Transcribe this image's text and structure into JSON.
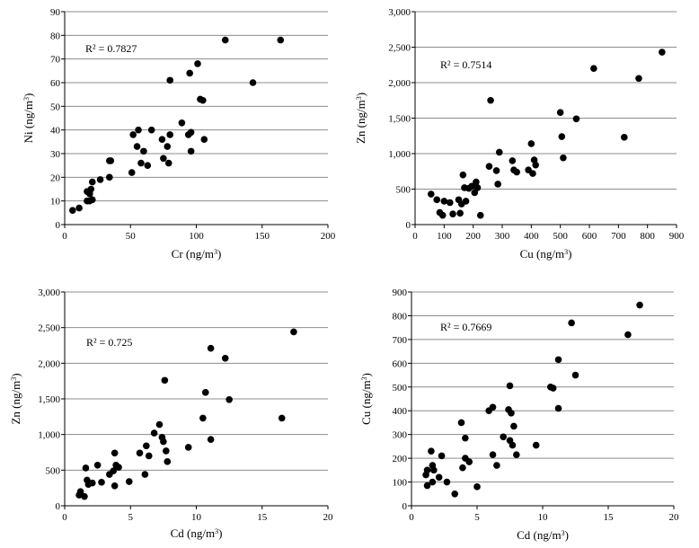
{
  "chart_data": [
    {
      "type": "scatter",
      "title": "",
      "xlabel": "Cr (ng/m3)",
      "ylabel": "Ni (ng/m3)",
      "xlim": [
        0,
        200
      ],
      "ylim": [
        0,
        90
      ],
      "xticks": [
        0,
        50,
        100,
        150,
        200
      ],
      "yticks": [
        0,
        10,
        20,
        30,
        40,
        50,
        60,
        70,
        80,
        90
      ],
      "ytick_labels": [
        "0",
        "10",
        "20",
        "30",
        "40",
        "50",
        "60",
        "70",
        "80",
        "90"
      ],
      "grid": "horizontal",
      "annotation": "R² = 0.7827",
      "points": [
        [
          6,
          6
        ],
        [
          11,
          7
        ],
        [
          17,
          10
        ],
        [
          19,
          10
        ],
        [
          21,
          10.5
        ],
        [
          17,
          14
        ],
        [
          20,
          15
        ],
        [
          19,
          13
        ],
        [
          21,
          18
        ],
        [
          27,
          19
        ],
        [
          34,
          20
        ],
        [
          34,
          27
        ],
        [
          35,
          27
        ],
        [
          51,
          22
        ],
        [
          52,
          38
        ],
        [
          56,
          40
        ],
        [
          55,
          33
        ],
        [
          60,
          31
        ],
        [
          58,
          26
        ],
        [
          63,
          25
        ],
        [
          66,
          40
        ],
        [
          74,
          36
        ],
        [
          75,
          28
        ],
        [
          78,
          33
        ],
        [
          79,
          26
        ],
        [
          80,
          38
        ],
        [
          80,
          61
        ],
        [
          89,
          43
        ],
        [
          94,
          38
        ],
        [
          95,
          64
        ],
        [
          96,
          39
        ],
        [
          96,
          31
        ],
        [
          101,
          68
        ],
        [
          103,
          53
        ],
        [
          105,
          52.5
        ],
        [
          106,
          36
        ],
        [
          122,
          78
        ],
        [
          143,
          60
        ],
        [
          164,
          78
        ]
      ]
    },
    {
      "type": "scatter",
      "title": "",
      "xlabel": "Cu (ng/m3)",
      "ylabel": "Zn (ng/m3)",
      "xlim": [
        0,
        900
      ],
      "ylim": [
        0,
        3000
      ],
      "xticks": [
        0,
        100,
        200,
        300,
        400,
        500,
        600,
        700,
        800,
        900
      ],
      "yticks": [
        0,
        500,
        1000,
        1500,
        2000,
        2500,
        3000
      ],
      "ytick_labels": [
        "0",
        "500",
        "1,000",
        "1,500",
        "2,000",
        "2,500",
        "3,000"
      ],
      "grid": "horizontal",
      "annotation": "R² = 0.7514",
      "points": [
        [
          55,
          430
        ],
        [
          75,
          350
        ],
        [
          85,
          170
        ],
        [
          95,
          130
        ],
        [
          100,
          330
        ],
        [
          120,
          310
        ],
        [
          130,
          150
        ],
        [
          150,
          350
        ],
        [
          155,
          160
        ],
        [
          160,
          290
        ],
        [
          165,
          700
        ],
        [
          170,
          520
        ],
        [
          175,
          330
        ],
        [
          185,
          510
        ],
        [
          195,
          540
        ],
        [
          205,
          450
        ],
        [
          210,
          600
        ],
        [
          215,
          520
        ],
        [
          225,
          130
        ],
        [
          255,
          820
        ],
        [
          260,
          1750
        ],
        [
          280,
          760
        ],
        [
          285,
          570
        ],
        [
          290,
          1020
        ],
        [
          335,
          900
        ],
        [
          340,
          770
        ],
        [
          350,
          740
        ],
        [
          390,
          770
        ],
        [
          400,
          1140
        ],
        [
          405,
          720
        ],
        [
          410,
          910
        ],
        [
          415,
          840
        ],
        [
          500,
          1580
        ],
        [
          505,
          1240
        ],
        [
          510,
          940
        ],
        [
          555,
          1490
        ],
        [
          615,
          2200
        ],
        [
          720,
          1230
        ],
        [
          770,
          2060
        ],
        [
          850,
          2430
        ]
      ]
    },
    {
      "type": "scatter",
      "title": "",
      "xlabel": "Cd (ng/m3)",
      "ylabel": "Zn (ng/m3)",
      "xlim": [
        0,
        20
      ],
      "ylim": [
        0,
        3000
      ],
      "xticks": [
        0,
        5,
        10,
        15,
        20
      ],
      "yticks": [
        0,
        500,
        1000,
        1500,
        2000,
        2500,
        3000
      ],
      "ytick_labels": [
        "0",
        "500",
        "1,000",
        "1,500",
        "2,000",
        "2,500",
        "3,000"
      ],
      "grid": "horizontal",
      "annotation": "R² = 0.725",
      "points": [
        [
          1.1,
          150
        ],
        [
          1.2,
          200
        ],
        [
          1.5,
          130
        ],
        [
          1.6,
          530
        ],
        [
          1.7,
          360
        ],
        [
          1.8,
          300
        ],
        [
          2.1,
          320
        ],
        [
          2.5,
          570
        ],
        [
          2.8,
          330
        ],
        [
          3.4,
          440
        ],
        [
          3.7,
          490
        ],
        [
          3.8,
          740
        ],
        [
          3.8,
          280
        ],
        [
          3.9,
          570
        ],
        [
          4.1,
          540
        ],
        [
          4.9,
          340
        ],
        [
          5.7,
          740
        ],
        [
          6.1,
          440
        ],
        [
          6.2,
          840
        ],
        [
          6.4,
          700
        ],
        [
          6.8,
          1020
        ],
        [
          7.2,
          1140
        ],
        [
          7.4,
          960
        ],
        [
          7.5,
          900
        ],
        [
          7.6,
          1760
        ],
        [
          7.7,
          770
        ],
        [
          7.8,
          620
        ],
        [
          9.4,
          820
        ],
        [
          10.5,
          1230
        ],
        [
          10.7,
          1590
        ],
        [
          11.1,
          2210
        ],
        [
          11.1,
          930
        ],
        [
          12.2,
          2070
        ],
        [
          12.5,
          1490
        ],
        [
          16.5,
          1230
        ],
        [
          17.4,
          2440
        ]
      ]
    },
    {
      "type": "scatter",
      "title": "",
      "xlabel": "Cd (ng/m3)",
      "ylabel": "Cu (ng/m3)",
      "xlim": [
        0,
        20
      ],
      "ylim": [
        0,
        900
      ],
      "xticks": [
        0,
        5,
        10,
        15,
        20
      ],
      "yticks": [
        0,
        100,
        200,
        300,
        400,
        500,
        600,
        700,
        800,
        900
      ],
      "ytick_labels": [
        "0",
        "100",
        "200",
        "300",
        "400",
        "500",
        "600",
        "700",
        "800",
        "900"
      ],
      "grid": "horizontal",
      "annotation": "R² = 0.7669",
      "points": [
        [
          1.1,
          130
        ],
        [
          1.2,
          150
        ],
        [
          1.2,
          85
        ],
        [
          1.5,
          230
        ],
        [
          1.6,
          170
        ],
        [
          1.6,
          100
        ],
        [
          1.7,
          150
        ],
        [
          2.1,
          120
        ],
        [
          2.3,
          210
        ],
        [
          2.7,
          100
        ],
        [
          3.3,
          50
        ],
        [
          3.8,
          350
        ],
        [
          3.9,
          160
        ],
        [
          4.1,
          200
        ],
        [
          4.1,
          285
        ],
        [
          4.4,
          185
        ],
        [
          5.0,
          80
        ],
        [
          5.9,
          400
        ],
        [
          6.2,
          415
        ],
        [
          6.2,
          215
        ],
        [
          6.5,
          170
        ],
        [
          7.0,
          290
        ],
        [
          7.4,
          405
        ],
        [
          7.5,
          505
        ],
        [
          7.5,
          275
        ],
        [
          7.6,
          390
        ],
        [
          7.7,
          255
        ],
        [
          7.8,
          335
        ],
        [
          8.0,
          215
        ],
        [
          9.5,
          255
        ],
        [
          10.6,
          500
        ],
        [
          10.8,
          495
        ],
        [
          11.2,
          615
        ],
        [
          11.2,
          410
        ],
        [
          12.2,
          770
        ],
        [
          12.5,
          550
        ],
        [
          16.5,
          720
        ],
        [
          17.4,
          845
        ]
      ]
    }
  ]
}
